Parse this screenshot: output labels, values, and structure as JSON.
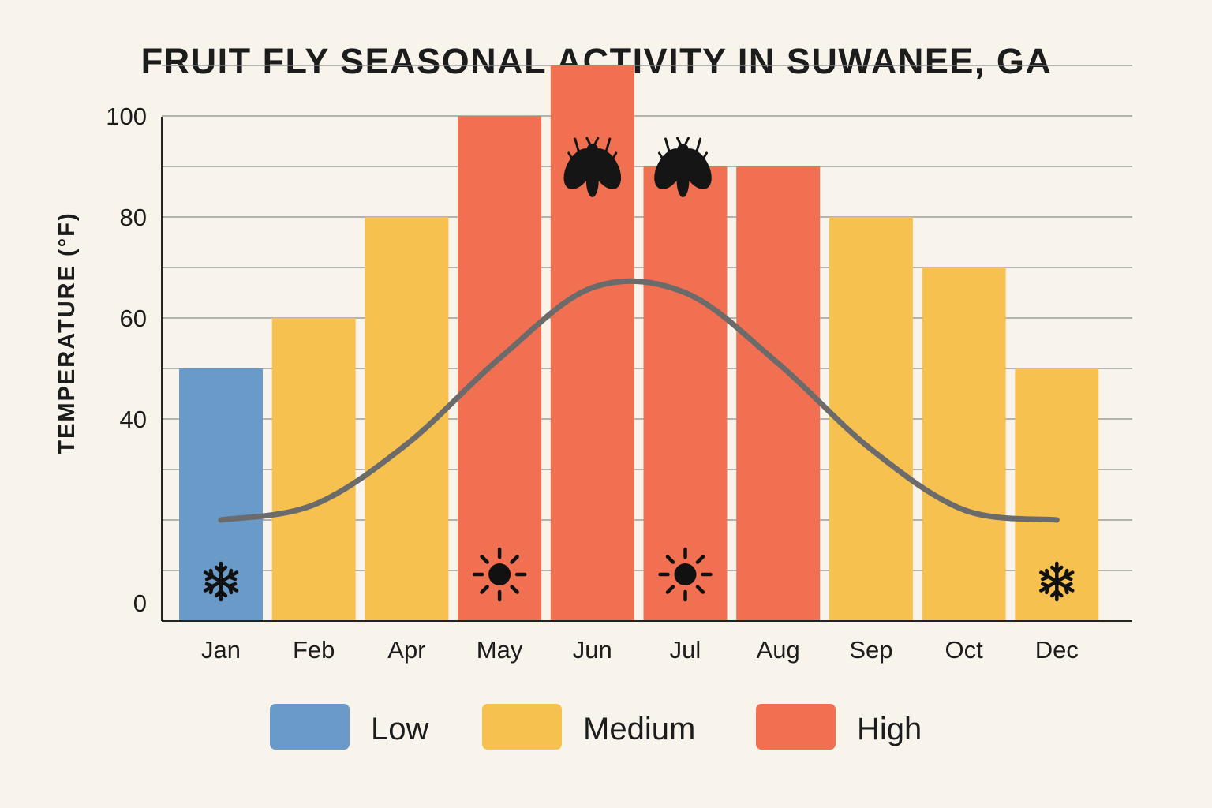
{
  "chart_data": {
    "type": "bar",
    "title": "FRUIT FLY SEASONAL ACTIVITY IN SUWANEE, GA",
    "xlabel": "",
    "ylabel": "TEMPERATURE (°F)",
    "ylim": [
      0,
      110
    ],
    "yticks": [
      0,
      40,
      60,
      80,
      100
    ],
    "grid": true,
    "categories": [
      "Jan",
      "Feb",
      "Apr",
      "May",
      "Jun",
      "Jul",
      "Aug",
      "Sep",
      "Oct",
      "Dec"
    ],
    "values": [
      50,
      60,
      80,
      100,
      110,
      90,
      90,
      80,
      70,
      50
    ],
    "activity": [
      "Low",
      "Medium",
      "Medium",
      "High",
      "High",
      "High",
      "High",
      "Medium",
      "Medium",
      "Medium"
    ],
    "curve": {
      "type": "line",
      "values": [
        20,
        23,
        35,
        52,
        66,
        65,
        51,
        34,
        22,
        20
      ]
    },
    "legend": [
      {
        "label": "Low",
        "color": "#6a9bc8"
      },
      {
        "label": "Medium",
        "color": "#f7c150"
      },
      {
        "label": "High",
        "color": "#f27052"
      }
    ],
    "legend_position": "bottom",
    "icons": [
      {
        "category": "Jan",
        "icon": "snowflake-icon"
      },
      {
        "category": "May",
        "icon": "sun-icon"
      },
      {
        "category": "Jun",
        "icon": "fly-icon"
      },
      {
        "category": "Jul",
        "icon": "fly-icon"
      },
      {
        "category": "Jul",
        "icon": "sun-icon"
      },
      {
        "category": "Dec",
        "icon": "snowflake-icon"
      }
    ],
    "colors": {
      "background": "#f8f4ec",
      "curve": "#6b6b6b",
      "grid": "#8a8a8a",
      "icon": "#111111"
    }
  }
}
